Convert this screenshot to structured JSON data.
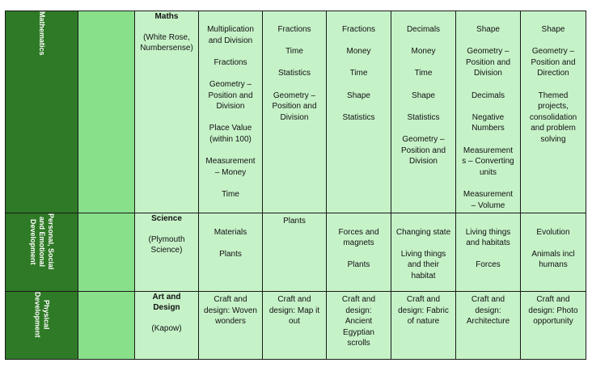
{
  "rows": [
    {
      "area": "Mathematics",
      "subject": "Maths",
      "provider": "(White Rose,\nNumbersense)",
      "terms": [
        "Multiplication\nand Division\n\nFractions\n\nGeometry –\nPosition and\nDivision\n\nPlace Value\n(within 100)\n\nMeasurement\n– Money\n\nTime",
        "Fractions\n\nTime\n\nStatistics\n\nGeometry –\nPosition and\nDivision",
        "Fractions\n\nMoney\n\nTime\n\nShape\n\nStatistics",
        "Decimals\n\nMoney\n\nTime\n\nShape\n\nStatistics\n\nGeometry –\nPosition and\nDivision",
        "Shape\n\nGeometry –\nPosition and\nDivision\n\nDecimals\n\nNegative\nNumbers\n\nMeasurement\ns – Converting\nunits\n\nMeasurement\n– Volume",
        "Shape\n\nGeometry –\nPosition and\nDirection\n\nThemed\nprojects,\nconsolidation\nand problem\nsolving"
      ]
    },
    {
      "area": "Personal, Social\nand Emotional\nDevelopment",
      "subject": "Science",
      "provider": "(Plymouth\nScience)",
      "terms": [
        "\nMaterials\n\nPlants",
        "Plants",
        "\nForces and\nmagnets\n\nPlants",
        "\nChanging state\n\nLiving things\nand their\nhabitat",
        "\nLiving things\nand habitats\n\nForces",
        "\nEvolution\n\nAnimals incl\nhumans"
      ]
    },
    {
      "area": "Physical\nDevelopment",
      "subject": "Art and\nDesign",
      "provider": "(Kapow)",
      "terms": [
        "Craft and\ndesign: Woven\nwonders",
        "Craft and\ndesign: Map it\nout",
        "Craft and\ndesign:\nAncient\nEgyptian\nscrolls",
        "Craft and\ndesign: Fabric\nof nature",
        "Craft and\ndesign:\nArchitecture",
        "Craft and\ndesign: Photo\nopportunity"
      ]
    }
  ]
}
